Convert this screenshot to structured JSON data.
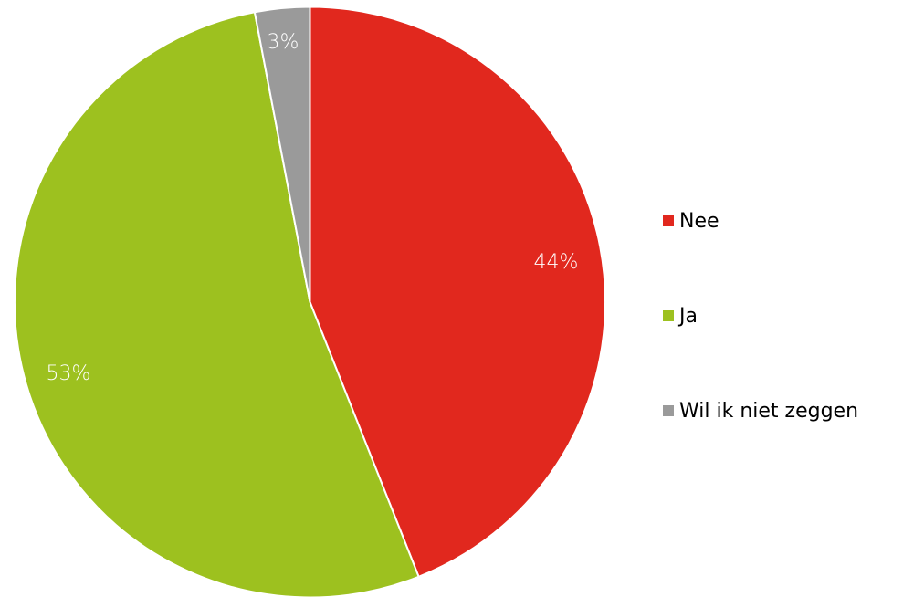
{
  "chart_data": {
    "type": "pie",
    "title": "",
    "start_angle_deg": 0,
    "direction": "clockwise",
    "slices": [
      {
        "label": "Nee",
        "value": 44,
        "display": "44%",
        "color": "#e1281e"
      },
      {
        "label": "Ja",
        "value": 53,
        "display": "53%",
        "color": "#9dc11f"
      },
      {
        "label": "Wil ik niet zeggen",
        "value": 3,
        "display": "3%",
        "color": "#9a9a9a"
      }
    ],
    "legend": {
      "position": "right",
      "items": [
        {
          "label": "Nee",
          "color": "#e1281e"
        },
        {
          "label": "Ja",
          "color": "#9dc11f"
        },
        {
          "label": "Wil ik niet zeggen",
          "color": "#9a9a9a"
        }
      ]
    }
  }
}
